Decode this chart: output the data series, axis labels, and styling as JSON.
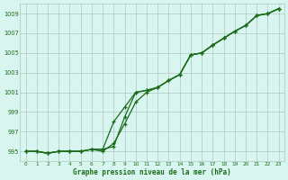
{
  "xlabel": "Graphe pression niveau de la mer (hPa)",
  "x_values": [
    0,
    1,
    2,
    3,
    4,
    5,
    6,
    7,
    8,
    9,
    10,
    11,
    12,
    13,
    14,
    15,
    16,
    17,
    18,
    19,
    20,
    21,
    22,
    23
  ],
  "line1": [
    995.0,
    995.0,
    994.8,
    995.0,
    995.0,
    995.0,
    995.2,
    995.2,
    995.5,
    998.5,
    1001.0,
    1001.2,
    1001.5,
    1002.2,
    1002.8,
    1004.8,
    1005.0,
    1005.8,
    1006.5,
    1007.2,
    1007.8,
    1008.8,
    1009.0,
    1009.5
  ],
  "line2": [
    995.0,
    995.0,
    994.8,
    995.0,
    995.0,
    995.0,
    995.2,
    995.2,
    998.0,
    999.5,
    1001.0,
    1001.2,
    1001.5,
    1002.2,
    1002.8,
    1004.8,
    1005.0,
    1005.8,
    1006.5,
    1007.2,
    1007.8,
    1008.8,
    1009.0,
    1009.5
  ],
  "line3": [
    995.0,
    995.0,
    994.8,
    995.0,
    995.0,
    995.0,
    995.2,
    995.0,
    995.8,
    997.8,
    1000.0,
    1001.0,
    1001.5,
    1002.2,
    1002.8,
    1004.8,
    1005.0,
    1005.8,
    1006.5,
    1007.2,
    1007.8,
    1008.8,
    1009.0,
    1009.5
  ],
  "ylim_min": 994.0,
  "ylim_max": 1010.0,
  "yticks": [
    995,
    997,
    999,
    1001,
    1003,
    1005,
    1007,
    1009
  ],
  "line_color": "#1a6b1a",
  "marker": "+",
  "bg_color": "#d8f5ef",
  "grid_color": "#aec8c0",
  "label_color": "#1a6b1a"
}
